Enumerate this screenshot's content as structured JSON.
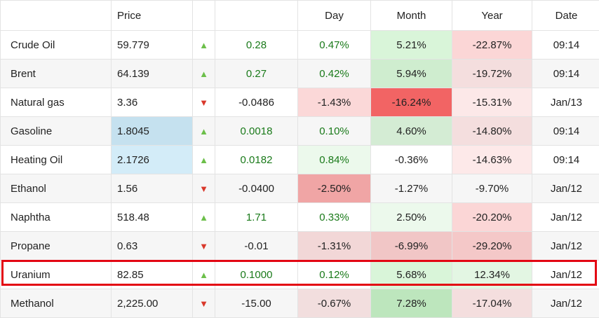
{
  "headers": {
    "name": "",
    "price": "Price",
    "arrow": "",
    "change": "",
    "day": "Day",
    "month": "Month",
    "year": "Year",
    "date": "Date"
  },
  "rows": [
    {
      "name": "Crude Oil",
      "price": "59.779",
      "dir": "up",
      "arrow": "▲",
      "change": "0.28",
      "day": "0.47%",
      "month": "5.21%",
      "year": "-22.87%",
      "date": "09:14",
      "colors": {
        "price": "",
        "day": "",
        "month": "#d9f5d9",
        "year": "#fbd6d6"
      }
    },
    {
      "name": "Brent",
      "price": "64.139",
      "dir": "up",
      "arrow": "▲",
      "change": "0.27",
      "day": "0.42%",
      "month": "5.94%",
      "year": "-19.72%",
      "date": "09:14",
      "colors": {
        "price": "",
        "day": "",
        "month": "#cfedcf",
        "year": "#f4dede"
      }
    },
    {
      "name": "Natural gas",
      "price": "3.36",
      "dir": "down",
      "arrow": "▼",
      "change": "-0.0486",
      "day": "-1.43%",
      "month": "-16.24%",
      "year": "-15.31%",
      "date": "Jan/13",
      "colors": {
        "price": "",
        "day": "#fbd8d8",
        "month": "#f26464",
        "year": "#fce8e8"
      }
    },
    {
      "name": "Gasoline",
      "price": "1.8045",
      "dir": "up",
      "arrow": "▲",
      "change": "0.0018",
      "day": "0.10%",
      "month": "4.60%",
      "year": "-14.80%",
      "date": "09:14",
      "colors": {
        "price": "#c5e1ef",
        "day": "",
        "month": "#d4ecd4",
        "year": "#f4dede"
      }
    },
    {
      "name": "Heating Oil",
      "price": "2.1726",
      "dir": "up",
      "arrow": "▲",
      "change": "0.0182",
      "day": "0.84%",
      "month": "-0.36%",
      "year": "-14.63%",
      "date": "09:14",
      "colors": {
        "price": "#d3ecf8",
        "day": "#ecf9ec",
        "month": "",
        "year": "#fde9e9"
      }
    },
    {
      "name": "Ethanol",
      "price": "1.56",
      "dir": "down",
      "arrow": "▼",
      "change": "-0.0400",
      "day": "-2.50%",
      "month": "-1.27%",
      "year": "-9.70%",
      "date": "Jan/12",
      "colors": {
        "price": "",
        "day": "#f0a5a5",
        "month": "",
        "year": ""
      }
    },
    {
      "name": "Naphtha",
      "price": "518.48",
      "dir": "up",
      "arrow": "▲",
      "change": "1.71",
      "day": "0.33%",
      "month": "2.50%",
      "year": "-20.20%",
      "date": "Jan/12",
      "colors": {
        "price": "",
        "day": "",
        "month": "#ecf9ec",
        "year": "#fbd6d6"
      }
    },
    {
      "name": "Propane",
      "price": "0.63",
      "dir": "down",
      "arrow": "▼",
      "change": "-0.01",
      "day": "-1.31%",
      "month": "-6.99%",
      "year": "-29.20%",
      "date": "Jan/12",
      "colors": {
        "price": "",
        "day": "#f2d7d7",
        "month": "#f1c6c6",
        "year": "#f4c8c8"
      }
    },
    {
      "name": "Uranium",
      "price": "82.85",
      "dir": "up",
      "arrow": "▲",
      "change": "0.1000",
      "day": "0.12%",
      "month": "5.68%",
      "year": "12.34%",
      "date": "Jan/12",
      "colors": {
        "price": "",
        "day": "",
        "month": "#d9f5d9",
        "year": "#e3f6e3"
      }
    },
    {
      "name": "Methanol",
      "price": "2,225.00",
      "dir": "down",
      "arrow": "▼",
      "change": "-15.00",
      "day": "-0.67%",
      "month": "7.28%",
      "year": "-17.04%",
      "date": "Jan/12",
      "colors": {
        "price": "",
        "day": "#f2dede",
        "month": "#bde6bd",
        "year": "#f4dede"
      }
    }
  ],
  "highlighted_row": "Uranium",
  "highlight_color": "#e30613"
}
